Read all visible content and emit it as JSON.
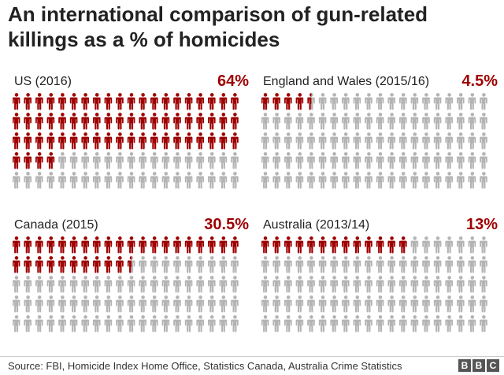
{
  "title": "An international comparison of gun-related killings as a % of homicides",
  "source": "Source: FBI, Homicide Index Home Office, Statistics Canada, Australia Crime Statistics",
  "logo": "BBC",
  "colors": {
    "highlight": "#9e0000",
    "rest": "#b4b4b4"
  },
  "chart_data": {
    "type": "pictogram",
    "icons_per_row": 20,
    "rows": 5,
    "total_icons": 100,
    "panels": [
      {
        "label": "US (2016)",
        "value_label": "64%",
        "value": 64
      },
      {
        "label": "England and Wales (2015/16)",
        "value_label": "4.5%",
        "value": 4.5
      },
      {
        "label": "Canada (2015)",
        "value_label": "30.5%",
        "value": 30.5
      },
      {
        "label": "Australia (2013/14)",
        "value_label": "13%",
        "value": 13
      }
    ]
  }
}
